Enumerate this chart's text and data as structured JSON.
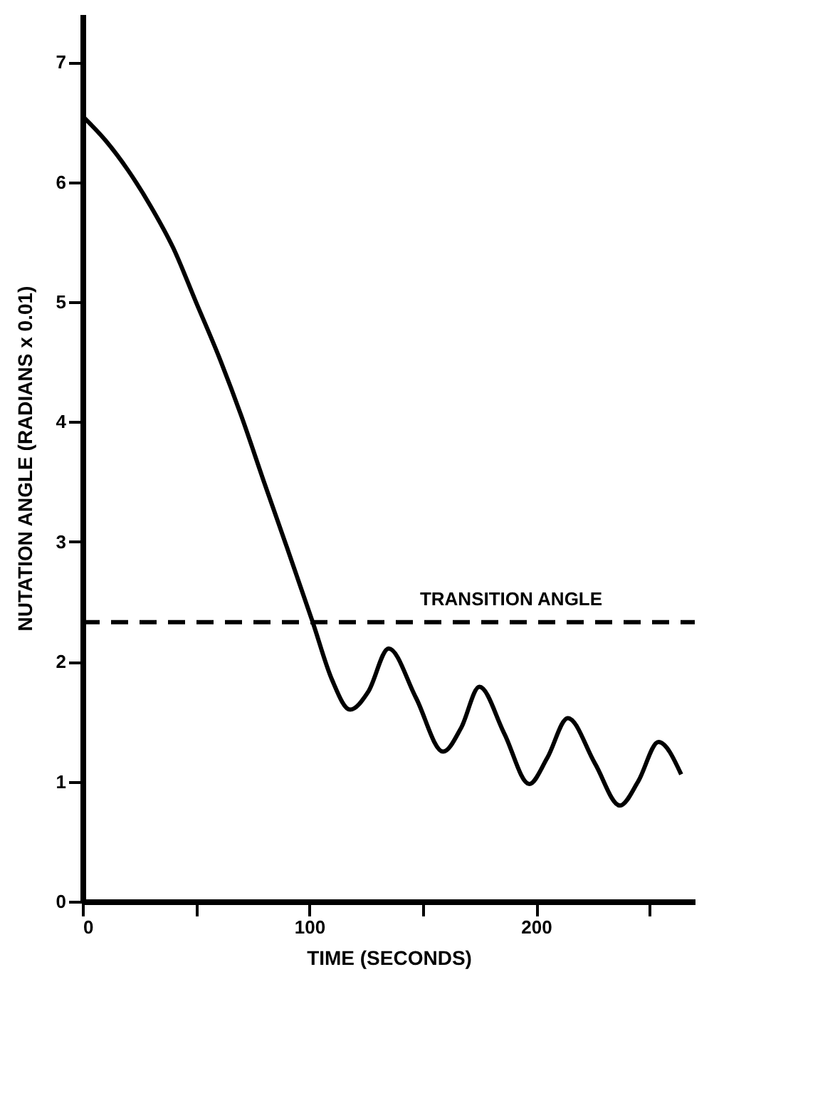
{
  "chart_data": {
    "type": "line",
    "xlabel": "TIME (SECONDS)",
    "ylabel": "NUTATION ANGLE   (RADIANS x 0.01)",
    "series": [
      {
        "color": "#000000",
        "x": [
          0,
          10,
          20,
          30,
          40,
          50,
          60,
          70,
          80,
          90,
          101.5,
          110,
          118,
          126,
          135,
          147,
          159,
          167,
          175,
          186,
          197,
          205,
          214,
          226,
          237,
          245,
          254,
          264
        ],
        "values": [
          6.55,
          6.35,
          6.1,
          5.8,
          5.45,
          5.0,
          4.55,
          4.05,
          3.5,
          2.96,
          2.33,
          1.85,
          1.6,
          1.75,
          2.11,
          1.7,
          1.25,
          1.45,
          1.79,
          1.4,
          0.98,
          1.2,
          1.53,
          1.15,
          0.8,
          1.0,
          1.33,
          1.06
        ]
      }
    ],
    "xlim": [
      0,
      270
    ],
    "ylim": [
      0,
      7.4
    ],
    "xticks": [
      0,
      {
        "value": 50,
        "label": null
      },
      100,
      {
        "value": 150,
        "label": null
      },
      200,
      {
        "value": 250,
        "label": null
      }
    ],
    "yticks": [
      0,
      1,
      2,
      3,
      4,
      5,
      6,
      7
    ],
    "ref_lines": [
      {
        "axis": "y",
        "value": 2.33,
        "label": "TRANSITION ANGLE",
        "line_style": "dashed",
        "color": "#000000"
      }
    ],
    "line_style": "solid",
    "marker": "none"
  }
}
